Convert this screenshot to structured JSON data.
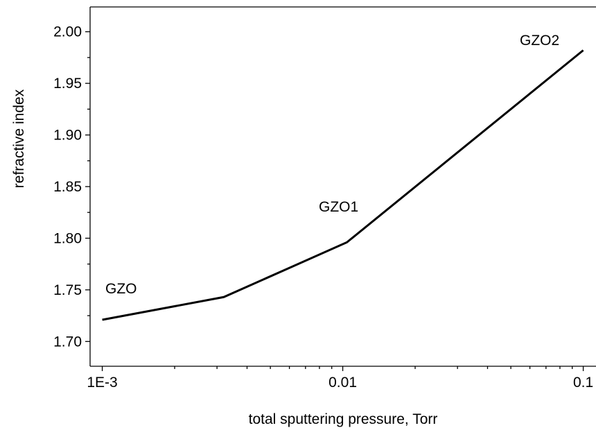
{
  "chart_data": {
    "type": "line",
    "xlabel": "total sputtering pressure, Torr",
    "ylabel": "refractive index",
    "x": [
      0.001,
      0.0032,
      0.0104,
      0.1
    ],
    "values": [
      1.721,
      1.743,
      1.796,
      1.982
    ],
    "color": "#000000",
    "xscale": "log",
    "xlim": [
      0.00089,
      0.113
    ],
    "xticks": [
      {
        "value": 0.001,
        "label": "1E-3"
      },
      0.01,
      0.1
    ],
    "ylim": [
      1.676,
      2.024
    ],
    "yticks": [
      {
        "value": 1.7,
        "label": "1.70"
      },
      1.75,
      {
        "value": 1.8,
        "label": "1.80"
      },
      1.85,
      {
        "value": 1.9,
        "label": "1.90"
      },
      1.95,
      {
        "value": 2.0,
        "label": "2.00"
      }
    ],
    "annotations": [
      "GZO",
      "GZO1",
      "GZO2"
    ]
  }
}
